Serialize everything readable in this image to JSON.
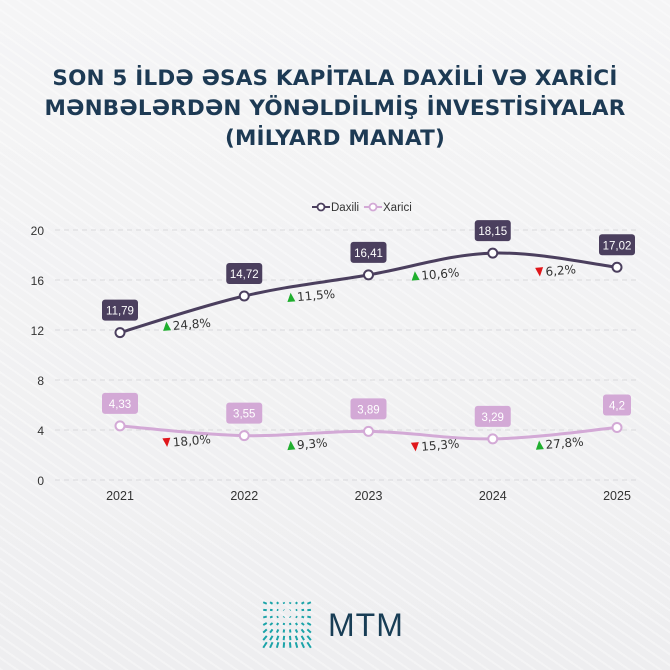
{
  "title_lines": [
    "SON 5 İLDƏ ƏSAS KAPİTALA DAXİLİ VƏ XARİCİ",
    "MƏNBƏLƏRDƏN YÖNƏLDİLMİŞ İNVESTİSİYALAR",
    "(MİLYARD MANAT)"
  ],
  "chart_data": {
    "type": "line",
    "title": "SON 5 İLDƏ ƏSAS KAPİTALA DAXİLİ VƏ XARİCİ MƏNBƏLƏRDƏN YÖNƏLDİLMİŞ İNVESTİSİYALAR (MİLYARD MANAT)",
    "categories": [
      "2021",
      "2022",
      "2023",
      "2024",
      "2025"
    ],
    "ylim": [
      0,
      20
    ],
    "yticks": [
      "0",
      "4",
      "8",
      "12",
      "16",
      "20"
    ],
    "grid": true,
    "legend_position": "top-center",
    "series": [
      {
        "name": "Daxili",
        "color": "#4b3f5e",
        "values": [
          11.79,
          14.72,
          16.41,
          18.15,
          17.02
        ],
        "labels": [
          "11,79",
          "14,72",
          "16,41",
          "18,15",
          "17,02"
        ],
        "changes": [
          {
            "text": "24,8%",
            "dir": "up"
          },
          {
            "text": "11,5%",
            "dir": "up"
          },
          {
            "text": "10,6%",
            "dir": "up"
          },
          {
            "text": "6,2%",
            "dir": "down"
          }
        ]
      },
      {
        "name": "Xarici",
        "color": "#d3a9d6",
        "values": [
          4.33,
          3.55,
          3.89,
          3.29,
          4.2
        ],
        "labels": [
          "4,33",
          "3,55",
          "3,89",
          "3,29",
          "4,2"
        ],
        "changes": [
          {
            "text": "18,0%",
            "dir": "down"
          },
          {
            "text": "9,3%",
            "dir": "up"
          },
          {
            "text": "15,3%",
            "dir": "down"
          },
          {
            "text": "27,8%",
            "dir": "up"
          }
        ]
      }
    ],
    "up_color": "#1fae2e",
    "down_color": "#e0161b"
  },
  "logo": {
    "text": "MTM",
    "color": "#1aa3a8"
  }
}
